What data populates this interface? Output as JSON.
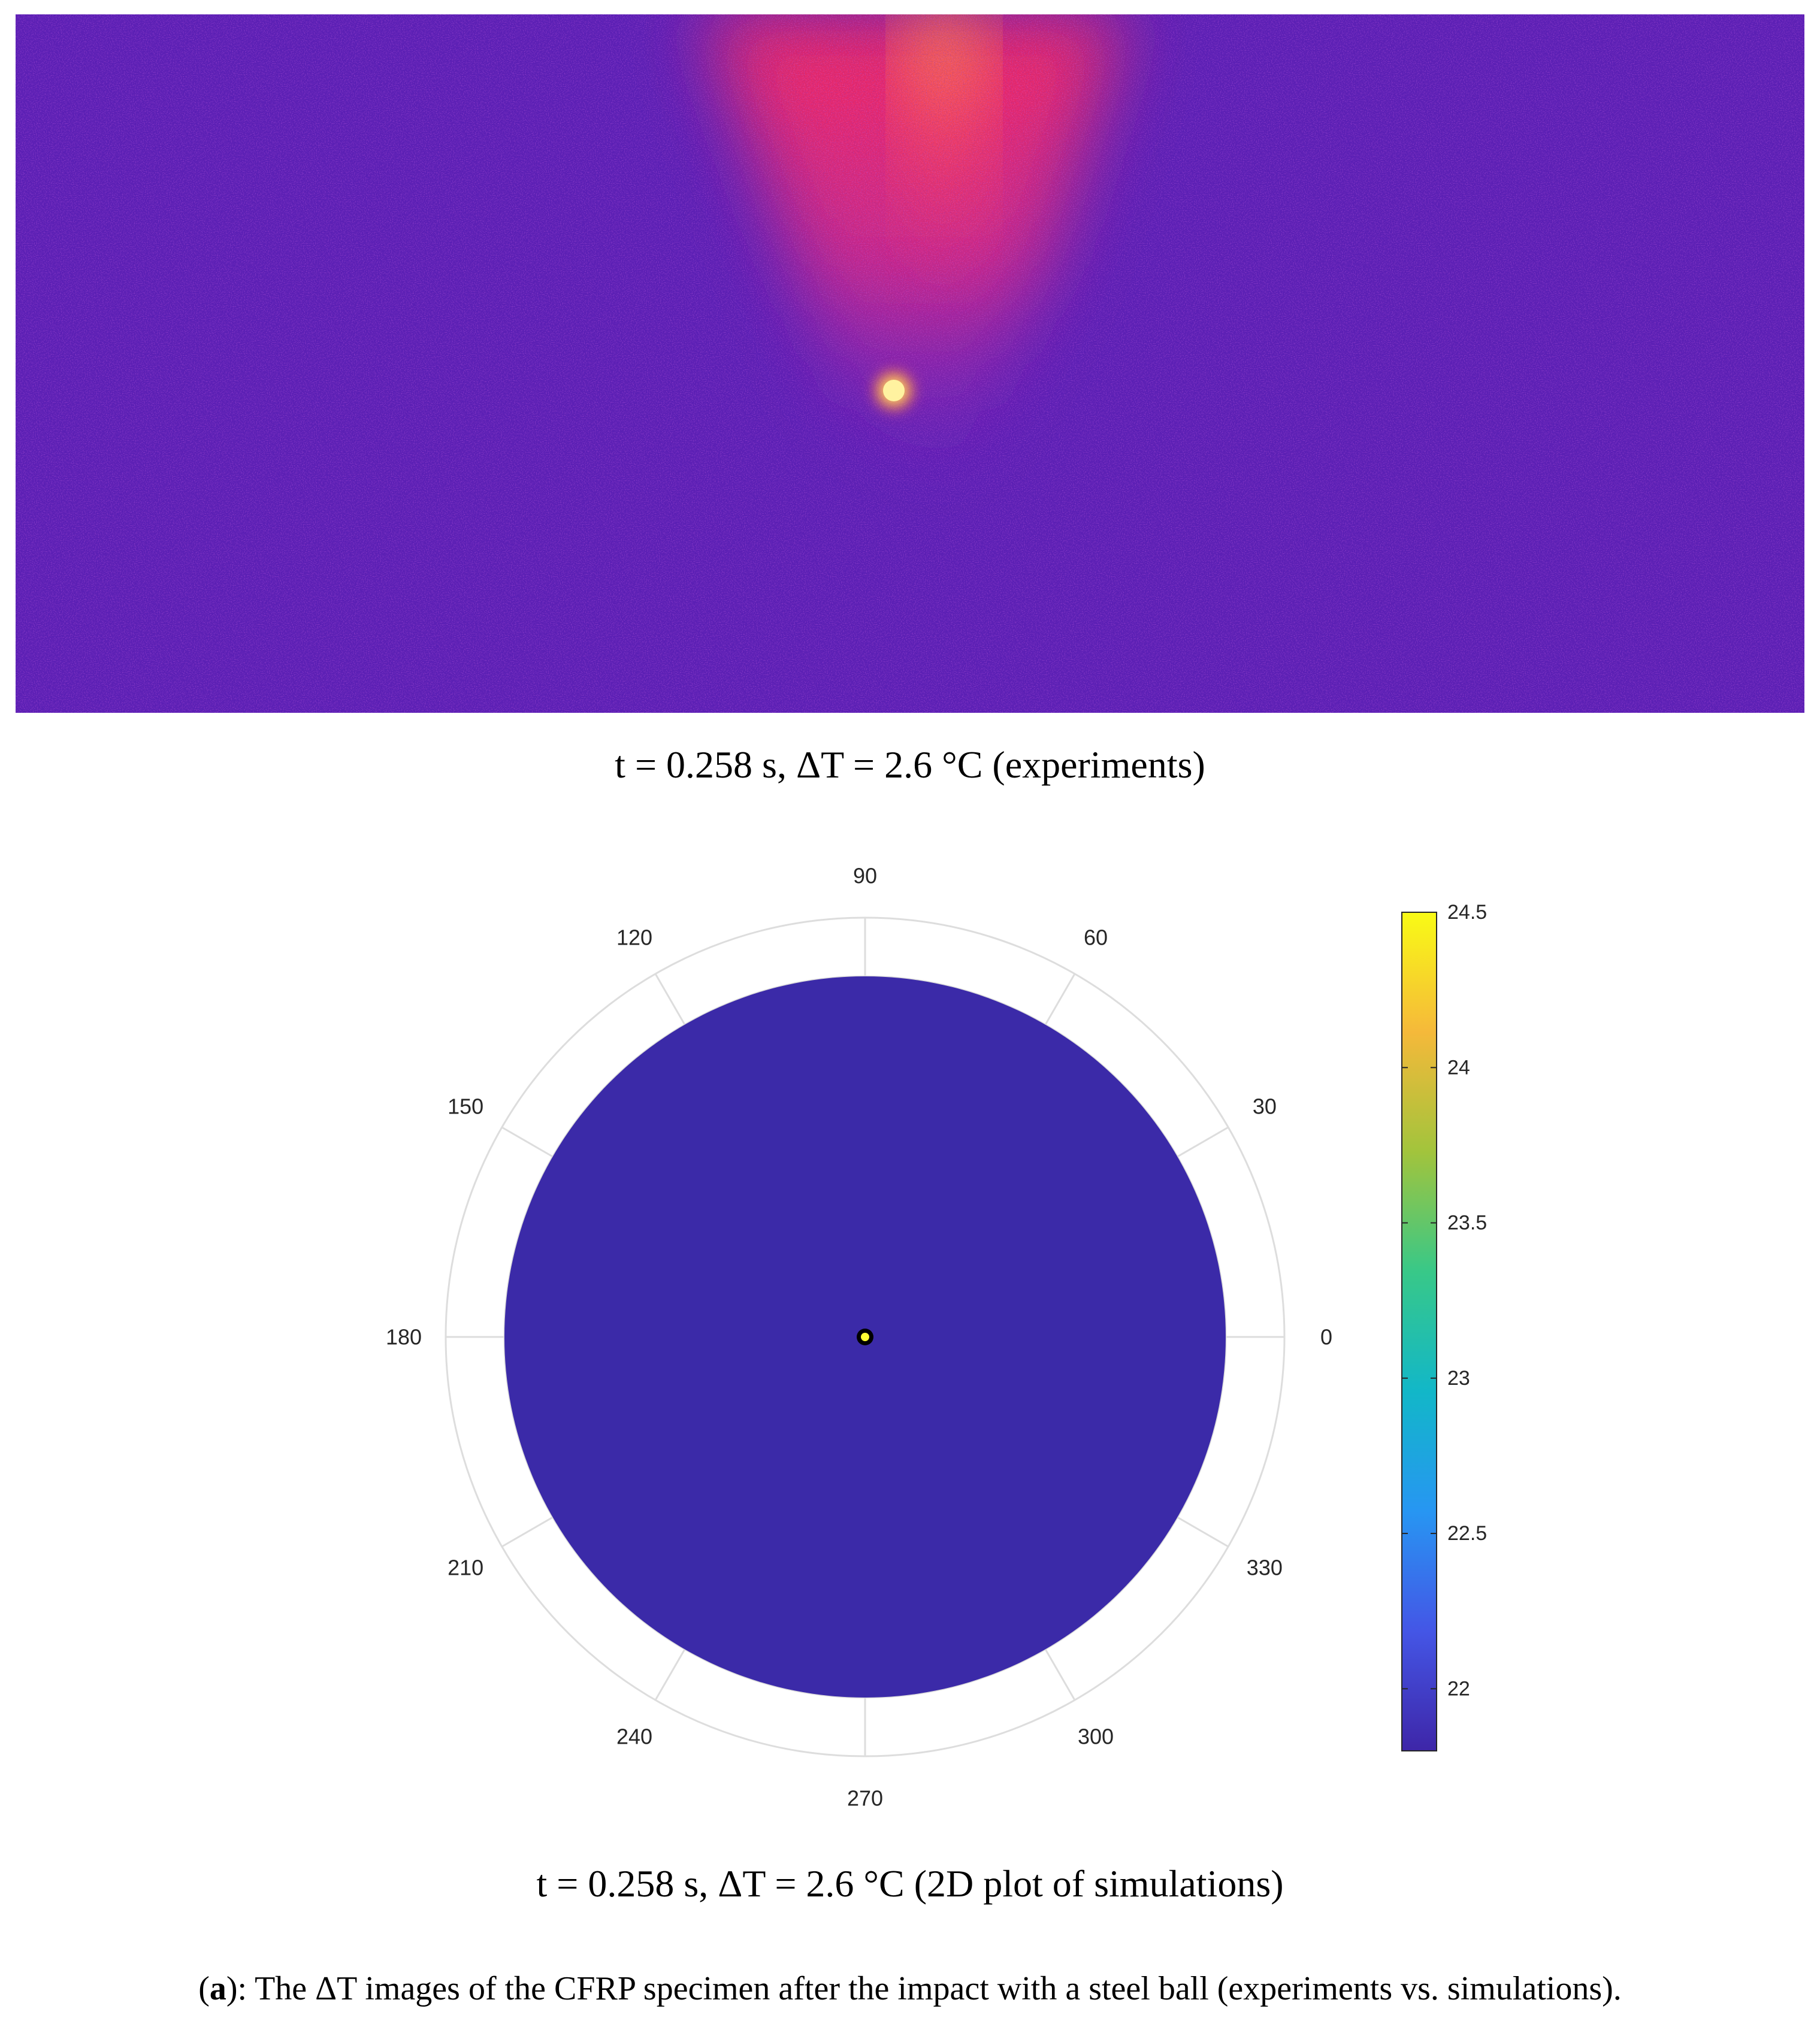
{
  "figure": {
    "experiment_caption": "t = 0.258 s, ΔT = 2.6 °C  (experiments)",
    "simulation_caption": "t = 0.258 s, ΔT = 2.6 °C  (2D plot of simulations)",
    "figure_caption": {
      "label_open": "(",
      "label": "a",
      "label_close": "):",
      "text": " The ΔT images of the CFRP specimen after the impact with a steel ball (experiments vs. simulations)."
    }
  },
  "colors": {
    "thermo_background": "#5a1fb4",
    "thermo_plume": "#ff3355",
    "thermo_hotspot": "#ffe060",
    "polar_fill": "#3b2aa8",
    "polar_grid": "#dddddd",
    "center_dot": "#ffff33"
  },
  "chart_data": {
    "type": "heatmap",
    "coordinate_system": "polar",
    "theta_ticks": [
      0,
      30,
      60,
      90,
      120,
      150,
      180,
      210,
      240,
      270,
      300,
      330
    ],
    "radial_range": [
      0,
      1
    ],
    "grid": true,
    "field": {
      "uniform_value": 21.8,
      "hotspot_value": 24.5,
      "hotspot_position": "center"
    },
    "colorbar": {
      "range": [
        21.8,
        24.5
      ],
      "ticks": [
        22,
        22.5,
        23,
        23.5,
        24,
        24.5
      ],
      "placement": "right",
      "colormap": [
        "#3e26a8",
        "#4456e6",
        "#2796f2",
        "#12b7c8",
        "#38c888",
        "#a2c43c",
        "#f5b93a",
        "#f9fb15"
      ]
    }
  }
}
